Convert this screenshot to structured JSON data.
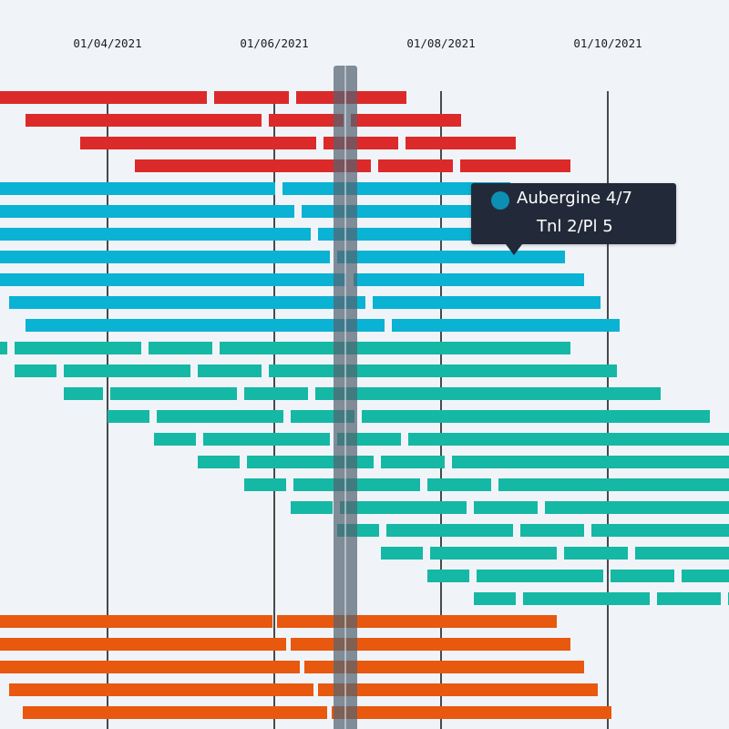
{
  "chart_data": {
    "type": "gantt",
    "x_axis": {
      "tick_labels": [
        "01/04/2021",
        "01/06/2021",
        "01/08/2021",
        "01/10/2021"
      ],
      "tick_dates": [
        "2021-04-01",
        "2021-06-01",
        "2021-08-01",
        "2021-10-01"
      ],
      "gridlines": true
    },
    "groups": [
      {
        "color": "#dc2a2a",
        "rows": [
          [
            [
              "2021-02-10",
              "2021-05-08"
            ],
            [
              "2021-05-10",
              "2021-06-07"
            ],
            [
              "2021-06-09",
              "2021-07-20"
            ]
          ],
          [
            "2021-03-02",
            "2021-05-28"
          ],
          [
            "2021-05-30",
            "2021-06-27"
          ],
          [
            "2021-06-29",
            "2021-08-09"
          ]
        ]
      },
      {
        "color": "#0ab2d3",
        "rows": []
      },
      {
        "color": "#15b8a4",
        "rows": []
      },
      {
        "color": "#e8580e",
        "rows": []
      }
    ],
    "rows": [
      {
        "color": "#dc2a2a",
        "segments": [
          [
            "2021-02-10",
            "2021-05-08"
          ],
          [
            "2021-05-10",
            "2021-06-07"
          ],
          [
            "2021-06-09",
            "2021-07-20"
          ]
        ]
      },
      {
        "color": "#dc2a2a",
        "segments": [
          [
            "2021-03-02",
            "2021-05-28"
          ],
          [
            "2021-05-30",
            "2021-06-27"
          ],
          [
            "2021-06-29",
            "2021-08-09"
          ]
        ]
      },
      {
        "color": "#dc2a2a",
        "segments": [
          [
            "2021-03-22",
            "2021-06-17"
          ],
          [
            "2021-06-19",
            "2021-07-17"
          ],
          [
            "2021-07-19",
            "2021-08-29"
          ]
        ]
      },
      {
        "color": "#dc2a2a",
        "segments": [
          [
            "2021-04-11",
            "2021-07-07"
          ],
          [
            "2021-07-09",
            "2021-08-06"
          ],
          [
            "2021-08-08",
            "2021-09-18"
          ]
        ]
      },
      {
        "color": "#0ab2d3",
        "segments": [
          [
            "2021-01-20",
            "2021-06-02"
          ],
          [
            "2021-06-04",
            "2021-08-27"
          ]
        ]
      },
      {
        "color": "#0ab2d3",
        "segments": [
          [
            "2021-01-20",
            "2021-06-09"
          ],
          [
            "2021-06-11",
            "2021-09-03"
          ]
        ]
      },
      {
        "color": "#0ab2d3",
        "segments": [
          [
            "2021-01-20",
            "2021-06-15"
          ],
          [
            "2021-06-17",
            "2021-09-10"
          ]
        ]
      },
      {
        "color": "#0ab2d3",
        "segments": [
          [
            "2021-02-10",
            "2021-06-22"
          ],
          [
            "2021-06-24",
            "2021-09-16"
          ]
        ]
      },
      {
        "color": "#0ab2d3",
        "segments": [
          [
            "2021-02-17",
            "2021-06-28"
          ],
          [
            "2021-06-30",
            "2021-09-23"
          ]
        ]
      },
      {
        "color": "#0ab2d3",
        "segments": [
          [
            "2021-02-24",
            "2021-07-05"
          ],
          [
            "2021-07-07",
            "2021-09-29"
          ]
        ]
      },
      {
        "color": "#0ab2d3",
        "segments": [
          [
            "2021-03-02",
            "2021-07-12"
          ],
          [
            "2021-07-14",
            "2021-10-06"
          ]
        ]
      },
      {
        "color": "#15b8a4",
        "segments": [
          [
            "2021-01-20",
            "2021-02-24"
          ],
          [
            "2021-02-26",
            "2021-04-14"
          ],
          [
            "2021-04-16",
            "2021-05-10"
          ],
          [
            "2021-05-12",
            "2021-09-18"
          ]
        ]
      },
      {
        "color": "#15b8a4",
        "segments": [
          [
            "2021-02-26",
            "2021-03-14"
          ],
          [
            "2021-03-16",
            "2021-05-02"
          ],
          [
            "2021-05-04",
            "2021-05-28"
          ],
          [
            "2021-05-30",
            "2021-10-05"
          ]
        ]
      },
      {
        "color": "#15b8a4",
        "segments": [
          [
            "2021-03-16",
            "2021-03-31"
          ],
          [
            "2021-04-02",
            "2021-05-19"
          ],
          [
            "2021-05-21",
            "2021-06-14"
          ],
          [
            "2021-06-16",
            "2021-10-21"
          ]
        ]
      },
      {
        "color": "#15b8a4",
        "segments": [
          [
            "2021-04-01",
            "2021-04-17"
          ],
          [
            "2021-04-19",
            "2021-06-05"
          ],
          [
            "2021-06-07",
            "2021-07-01"
          ],
          [
            "2021-07-03",
            "2021-11-08"
          ]
        ]
      },
      {
        "color": "#15b8a4",
        "segments": [
          [
            "2021-04-18",
            "2021-05-04"
          ],
          [
            "2021-05-06",
            "2021-06-22"
          ],
          [
            "2021-06-24",
            "2021-07-18"
          ],
          [
            "2021-07-20",
            "2021-11-24"
          ]
        ]
      },
      {
        "color": "#15b8a4",
        "segments": [
          [
            "2021-05-04",
            "2021-05-20"
          ],
          [
            "2021-05-22",
            "2021-07-08"
          ],
          [
            "2021-07-10",
            "2021-08-03"
          ],
          [
            "2021-08-05",
            "2021-12-11"
          ]
        ]
      },
      {
        "color": "#15b8a4",
        "segments": [
          [
            "2021-05-21",
            "2021-06-06"
          ],
          [
            "2021-06-08",
            "2021-07-25"
          ],
          [
            "2021-07-27",
            "2021-08-20"
          ],
          [
            "2021-08-22",
            "2021-12-28"
          ]
        ]
      },
      {
        "color": "#15b8a4",
        "segments": [
          [
            "2021-06-07",
            "2021-06-23"
          ],
          [
            "2021-06-25",
            "2021-08-11"
          ],
          [
            "2021-08-13",
            "2021-09-06"
          ],
          [
            "2021-09-08",
            "2022-01-14"
          ]
        ]
      },
      {
        "color": "#15b8a4",
        "segments": [
          [
            "2021-06-24",
            "2021-07-10"
          ],
          [
            "2021-07-12",
            "2021-08-28"
          ],
          [
            "2021-08-30",
            "2021-09-23"
          ],
          [
            "2021-09-25",
            "2022-01-31"
          ]
        ]
      },
      {
        "color": "#15b8a4",
        "segments": [
          [
            "2021-07-10",
            "2021-07-26"
          ],
          [
            "2021-07-28",
            "2021-09-13"
          ],
          [
            "2021-09-15",
            "2021-10-09"
          ],
          [
            "2021-10-11",
            "2022-02-16"
          ]
        ]
      },
      {
        "color": "#15b8a4",
        "segments": [
          [
            "2021-07-27",
            "2021-08-12"
          ],
          [
            "2021-08-14",
            "2021-09-30"
          ],
          [
            "2021-10-02",
            "2021-10-26"
          ],
          [
            "2021-10-28",
            "2022-03-05"
          ]
        ]
      },
      {
        "color": "#15b8a4",
        "segments": [
          [
            "2021-08-13",
            "2021-08-29"
          ],
          [
            "2021-08-31",
            "2021-10-17"
          ],
          [
            "2021-10-19",
            "2021-11-12"
          ],
          [
            "2021-11-14",
            "2022-03-21"
          ]
        ]
      },
      {
        "color": "#e8580e",
        "segments": [
          [
            "2021-01-20",
            "2021-06-01"
          ],
          [
            "2021-06-02",
            "2021-09-13"
          ]
        ]
      },
      {
        "color": "#e8580e",
        "segments": [
          [
            "2021-02-14",
            "2021-06-06"
          ],
          [
            "2021-06-07",
            "2021-09-18"
          ]
        ]
      },
      {
        "color": "#e8580e",
        "segments": [
          [
            "2021-02-19",
            "2021-06-11"
          ],
          [
            "2021-06-12",
            "2021-09-23"
          ]
        ]
      },
      {
        "color": "#e8580e",
        "segments": [
          [
            "2021-02-24",
            "2021-06-16"
          ],
          [
            "2021-06-17",
            "2021-09-28"
          ]
        ]
      },
      {
        "color": "#e8580e",
        "segments": [
          [
            "2021-03-01",
            "2021-06-21"
          ],
          [
            "2021-06-22",
            "2021-10-03"
          ]
        ]
      }
    ],
    "highlight_date": "2021-06-27",
    "tooltip": {
      "title": "Aubergine 4/7",
      "subtitle": "Tnl 2/Pl 5",
      "color": "#0d8fb3"
    }
  }
}
